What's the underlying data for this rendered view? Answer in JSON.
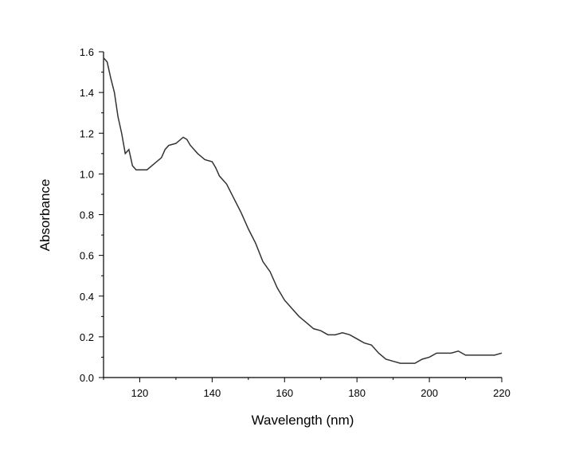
{
  "chart_data": {
    "type": "line",
    "x_label": "Wavelength (nm)",
    "y_label": "Absorbance",
    "x": [
      110,
      111,
      112,
      113,
      114,
      115,
      116,
      117,
      118,
      119,
      120,
      122,
      124,
      126,
      127,
      128,
      130,
      132,
      133,
      134,
      136,
      138,
      140,
      141,
      142,
      144,
      146,
      148,
      150,
      152,
      154,
      156,
      158,
      160,
      162,
      164,
      166,
      168,
      170,
      172,
      174,
      176,
      178,
      180,
      182,
      184,
      186,
      188,
      190,
      192,
      194,
      196,
      198,
      200,
      202,
      204,
      206,
      208,
      210,
      212,
      214,
      216,
      218,
      220
    ],
    "series": [
      {
        "color": "#333333",
        "values": [
          1.57,
          1.55,
          1.47,
          1.4,
          1.28,
          1.2,
          1.1,
          1.12,
          1.04,
          1.02,
          1.02,
          1.02,
          1.05,
          1.08,
          1.12,
          1.14,
          1.15,
          1.18,
          1.17,
          1.14,
          1.1,
          1.07,
          1.06,
          1.03,
          0.99,
          0.95,
          0.88,
          0.81,
          0.73,
          0.66,
          0.57,
          0.52,
          0.44,
          0.38,
          0.34,
          0.3,
          0.27,
          0.24,
          0.23,
          0.21,
          0.21,
          0.22,
          0.21,
          0.19,
          0.17,
          0.16,
          0.12,
          0.09,
          0.08,
          0.07,
          0.07,
          0.07,
          0.09,
          0.1,
          0.12,
          0.12,
          0.12,
          0.13,
          0.11,
          0.11,
          0.11,
          0.11,
          0.11,
          0.12
        ]
      }
    ],
    "xlim": [
      110,
      220
    ],
    "xticks": [
      120,
      140,
      160,
      180,
      200,
      220
    ],
    "xminorticks": [
      110,
      130,
      150,
      170,
      190,
      210
    ],
    "ylim": [
      0,
      1.6
    ],
    "yticks": [
      {
        "value": 0,
        "label": "0.0"
      },
      0.2,
      0.4,
      0.6,
      0.8,
      {
        "value": 1,
        "label": "1.0"
      },
      1.2,
      1.4,
      1.6
    ],
    "yminorticks": [
      0.1,
      0.3,
      0.5,
      0.7,
      0.9,
      1.1,
      1.3,
      1.5
    ]
  }
}
